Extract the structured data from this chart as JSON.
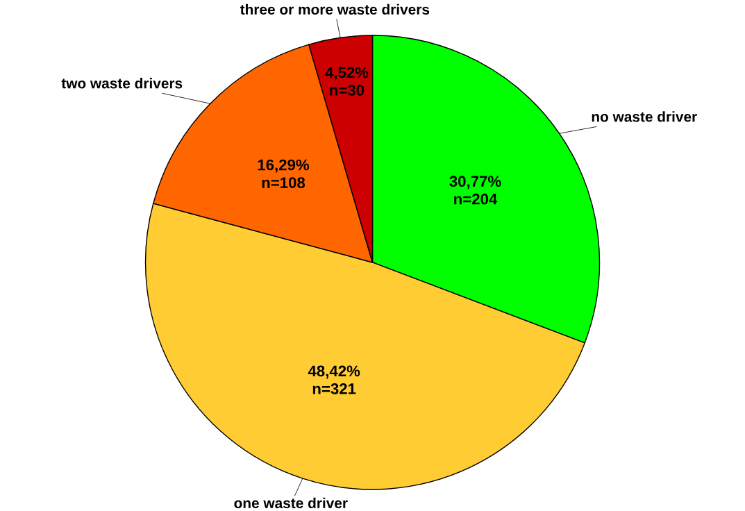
{
  "chart_data": {
    "type": "pie",
    "categories": [
      "no waste driver",
      "one waste driver",
      "two waste drivers",
      "three or more waste drivers"
    ],
    "values": [
      204,
      321,
      108,
      30
    ],
    "colors": [
      "#00ff00",
      "#ffcc33",
      "#ff6600",
      "#cc0000"
    ],
    "value_labels": [
      "30,77%\nn=204",
      "48,42%\nn=321",
      "16,29%\nn=108",
      "4,52%\nn=30"
    ],
    "legend": false
  }
}
